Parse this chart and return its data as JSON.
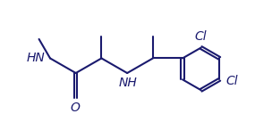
{
  "background_color": "#ffffff",
  "line_color": "#1a1a6e",
  "text_color": "#1a1a6e",
  "bond_lw": 1.5,
  "font_size": 10,
  "fig_w": 3.04,
  "fig_h": 1.37,
  "dpi": 100,
  "xlim": [
    -0.1,
    3.14
  ],
  "ylim": [
    -0.1,
    1.47
  ]
}
